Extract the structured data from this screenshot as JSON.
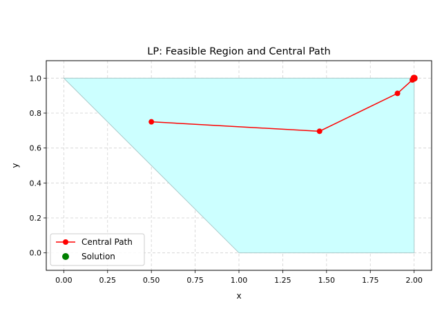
{
  "chart_data": {
    "type": "line",
    "title": "LP: Feasible Region and Central Path",
    "xlabel": "x",
    "ylabel": "y",
    "xlim": [
      -0.1,
      2.1
    ],
    "ylim": [
      -0.1,
      1.1
    ],
    "xticks": [
      "0.00",
      "0.25",
      "0.50",
      "0.75",
      "1.00",
      "1.25",
      "1.50",
      "1.75",
      "2.00"
    ],
    "yticks": [
      "0.0",
      "0.2",
      "0.4",
      "0.6",
      "0.8",
      "1.0"
    ],
    "grid": true,
    "legend_position": "lower-left",
    "feasible_region": {
      "vertices": [
        [
          0,
          1
        ],
        [
          2,
          1
        ],
        [
          2,
          0
        ],
        [
          1,
          0
        ]
      ],
      "color": "#ccffff",
      "edge_color": "#a8c8c8"
    },
    "series": [
      {
        "name": "Central Path",
        "color": "#ff0000",
        "marker": "circle",
        "points": [
          [
            0.5,
            0.75
          ],
          [
            1.46,
            0.696
          ],
          [
            1.905,
            0.913
          ],
          [
            1.99,
            0.99
          ],
          [
            1.998,
            0.998
          ],
          [
            2.0,
            1.0
          ]
        ]
      },
      {
        "name": "Solution",
        "color": "#008000",
        "marker": "circle",
        "points": [
          [
            2.0,
            1.0
          ]
        ]
      }
    ]
  }
}
